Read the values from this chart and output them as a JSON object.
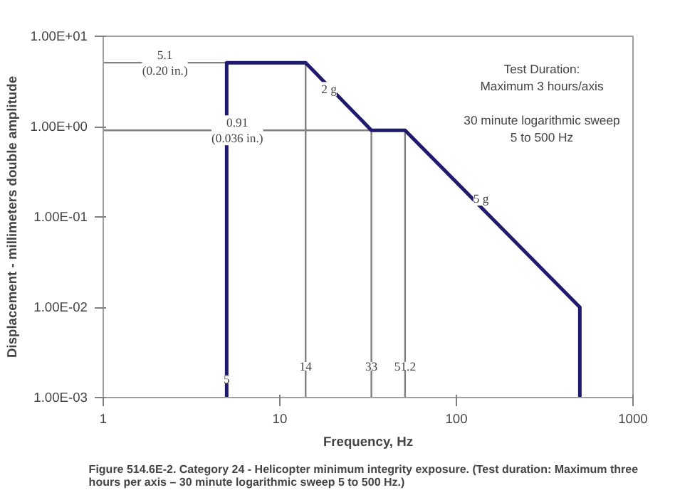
{
  "chart_data": {
    "type": "line",
    "title": "Figure 514.6E-2.  Category 24 - Helicopter minimum integrity exposure.  (Test duration:  Maximum three\nhours per axis – 30 minute logarithmic sweep 5 to 500 Hz.)",
    "xlabel": "Frequency, Hz",
    "ylabel": "Displacement - millimeters double amplitude",
    "log": "xy",
    "grid": false,
    "marker": "none",
    "line_style": "solid",
    "xlim": [
      1,
      1000
    ],
    "xticks": [
      1,
      10,
      100,
      1000
    ],
    "ylim": [
      0.001,
      10
    ],
    "yticks": [
      {
        "value": 0.001,
        "label": "1.00E-03"
      },
      {
        "value": 0.01,
        "label": "1.00E-02"
      },
      {
        "value": 0.1,
        "label": "1.00E-01"
      },
      {
        "value": 1,
        "label": "1.00E+00"
      },
      {
        "value": 10,
        "label": "1.00E+01"
      }
    ],
    "series": [
      {
        "color": "#1f1a6e",
        "x": [
          5,
          5,
          14,
          33,
          51.2,
          500,
          500
        ],
        "values": [
          0.001,
          5.1,
          5.1,
          0.91,
          0.91,
          0.01,
          0.001
        ]
      }
    ],
    "ref_lines": [
      {
        "axis": "y",
        "value": 5.1,
        "label": "5.1\n(0.20 in.)",
        "color": "#808080"
      },
      {
        "axis": "y",
        "value": 0.91,
        "label": "0.91\n(0.036 in.)",
        "color": "#808080"
      },
      {
        "axis": "x",
        "value": 14,
        "label": "14",
        "color": "#808080"
      },
      {
        "axis": "x",
        "value": 33,
        "label": "33",
        "color": "#808080"
      },
      {
        "axis": "x",
        "value": 51.2,
        "label": "51.2",
        "color": "#808080"
      }
    ],
    "annotations": [
      {
        "text": "5",
        "x": 5,
        "y": 0.0016
      },
      {
        "text": "2 g",
        "x": 19,
        "y": 2.6
      },
      {
        "text": "5 g",
        "x": 138,
        "y": 0.16
      },
      "Test Duration:\nMaximum 3 hours/axis\n\n30 minute logarithmic sweep\n5 to 500 Hz"
    ]
  }
}
